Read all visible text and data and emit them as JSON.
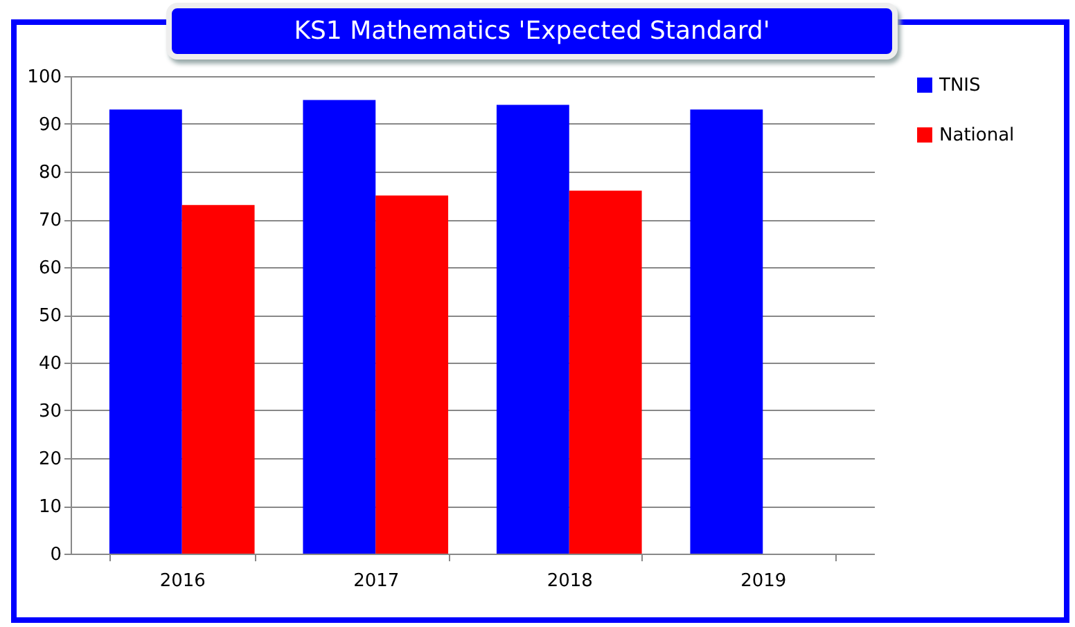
{
  "chart_data": {
    "type": "bar",
    "title": "KS1 Mathematics 'Expected Standard'",
    "categories": [
      "2016",
      "2017",
      "2018",
      "2019"
    ],
    "series": [
      {
        "name": "TNIS",
        "color": "#0000ff",
        "values": [
          93,
          95,
          94,
          93
        ]
      },
      {
        "name": "National",
        "color": "#ff0000",
        "values": [
          73,
          75,
          76,
          null
        ]
      }
    ],
    "ylim": [
      0,
      100
    ],
    "yticks": [
      0,
      10,
      20,
      30,
      40,
      50,
      60,
      70,
      80,
      90,
      100
    ],
    "grid": "y",
    "legend": "right"
  }
}
